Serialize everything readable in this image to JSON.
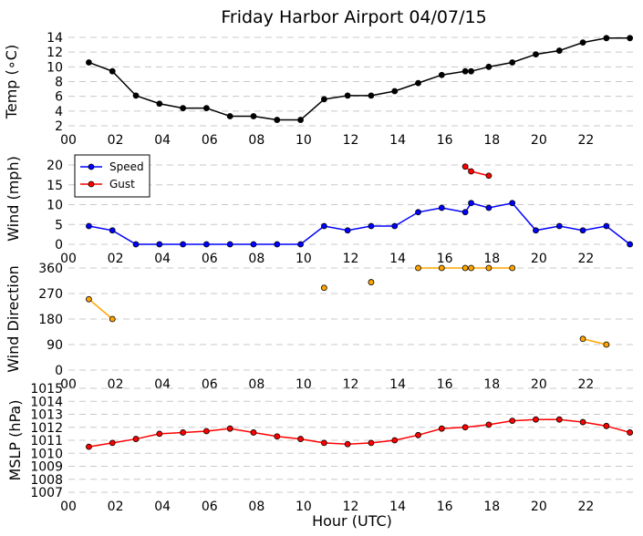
{
  "figure_title": "Friday Harbor Airport 04/07/15",
  "x_axis_label": "Hour (UTC)",
  "x_tick_labels": [
    "00",
    "02",
    "04",
    "06",
    "08",
    "10",
    "12",
    "14",
    "16",
    "18",
    "20",
    "22"
  ],
  "chart_data": [
    {
      "type": "line",
      "ylabel": "Temp (°C)",
      "ylabel_text": "Temp (∘C)",
      "xlim": [
        0,
        24
      ],
      "ylim": [
        2,
        14
      ],
      "yticks": [
        2,
        4,
        6,
        8,
        10,
        12,
        14
      ],
      "grid": true,
      "series": [
        {
          "color": "#000000",
          "x": [
            0.87,
            1.87,
            2.87,
            3.87,
            4.87,
            5.87,
            6.87,
            7.87,
            8.87,
            9.87,
            10.87,
            11.87,
            12.87,
            13.87,
            14.87,
            15.87,
            16.87,
            17.12,
            17.87,
            18.87,
            19.87,
            20.87,
            21.87,
            22.87,
            23.87
          ],
          "values": [
            10.6,
            9.4,
            6.1,
            5.0,
            4.4,
            4.4,
            3.3,
            3.3,
            2.8,
            2.8,
            5.6,
            6.1,
            6.1,
            6.7,
            7.8,
            8.9,
            9.4,
            9.4,
            10.0,
            10.6,
            11.7,
            12.2,
            13.3,
            13.9,
            13.9
          ]
        }
      ]
    },
    {
      "type": "line",
      "ylabel": "Wind (mph)",
      "xlim": [
        0,
        24
      ],
      "ylim": [
        0,
        23
      ],
      "yticks": [
        0,
        5,
        10,
        15,
        20
      ],
      "grid": true,
      "legend_position": "top-left",
      "series": [
        {
          "name": "Speed",
          "color": "#0000ff",
          "x": [
            0.87,
            1.87,
            2.87,
            3.87,
            4.87,
            5.87,
            6.87,
            7.87,
            8.87,
            9.87,
            10.87,
            11.87,
            12.87,
            13.87,
            14.87,
            15.87,
            16.87,
            17.12,
            17.87,
            18.87,
            19.87,
            20.87,
            21.87,
            22.87,
            23.87
          ],
          "values": [
            4.6,
            3.5,
            0,
            0,
            0,
            0,
            0,
            0,
            0,
            0,
            4.6,
            3.5,
            4.6,
            4.6,
            8.1,
            9.2,
            8.1,
            10.4,
            9.2,
            10.4,
            3.5,
            4.6,
            3.5,
            4.6,
            0
          ]
        },
        {
          "name": "Gust",
          "color": "#ff0000",
          "x": [
            16.87,
            17.12,
            17.87
          ],
          "values": [
            19.6,
            18.4,
            17.3
          ]
        }
      ]
    },
    {
      "type": "line",
      "ylabel": "Wind Direction",
      "xlim": [
        0,
        24
      ],
      "ylim": [
        0,
        360
      ],
      "yticks": [
        0,
        90,
        180,
        270,
        360
      ],
      "grid": true,
      "series": [
        {
          "color": "#ffa500",
          "x": [
            0.87,
            1.87
          ],
          "values": [
            250,
            180
          ]
        },
        {
          "color": "#ffa500",
          "x": [
            10.87
          ],
          "values": [
            290
          ]
        },
        {
          "color": "#ffa500",
          "x": [
            12.87
          ],
          "values": [
            310
          ]
        },
        {
          "color": "#ffa500",
          "x": [
            14.87,
            15.87,
            16.87,
            17.12,
            17.87,
            18.87
          ],
          "values": [
            360,
            360,
            360,
            360,
            360,
            360
          ]
        },
        {
          "color": "#ffa500",
          "x": [
            21.87,
            22.87
          ],
          "values": [
            110,
            90
          ]
        }
      ]
    },
    {
      "type": "line",
      "ylabel": "MSLP (hPa)",
      "xlim": [
        0,
        24
      ],
      "ylim": [
        1007,
        1015
      ],
      "yticks": [
        1007,
        1008,
        1009,
        1010,
        1011,
        1012,
        1013,
        1014,
        1015
      ],
      "grid": true,
      "series": [
        {
          "color": "#ff0000",
          "x": [
            0.87,
            1.87,
            2.87,
            3.87,
            4.87,
            5.87,
            6.87,
            7.87,
            8.87,
            9.87,
            10.87,
            11.87,
            12.87,
            13.87,
            14.87,
            15.87,
            16.87,
            17.87,
            18.87,
            19.87,
            20.87,
            21.87,
            22.87,
            23.87
          ],
          "values": [
            1010.5,
            1010.8,
            1011.1,
            1011.5,
            1011.6,
            1011.7,
            1011.9,
            1011.6,
            1011.3,
            1011.1,
            1010.8,
            1010.7,
            1010.8,
            1011.0,
            1011.4,
            1011.9,
            1012.0,
            1012.2,
            1012.5,
            1012.6,
            1012.6,
            1012.4,
            1012.1,
            1011.6
          ]
        }
      ]
    }
  ]
}
